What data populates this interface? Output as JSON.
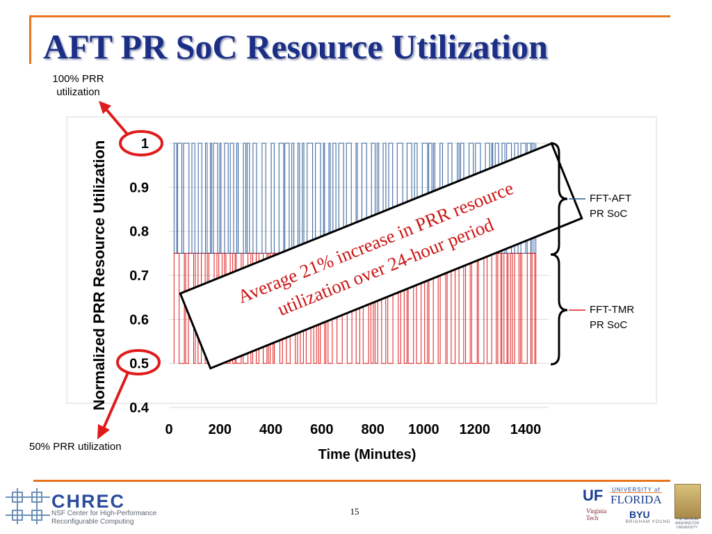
{
  "slide": {
    "title": "AFT PR SoC Resource Utilization",
    "page_number": "15"
  },
  "annotations": {
    "top_note_line1": "100% PRR",
    "top_note_line2": "utilization",
    "bottom_note": "50% PRR utilization",
    "callout_line1": "Average 21% increase in PRR resource",
    "callout_line2": "utilization over 24-hour period",
    "brace_label_aft_line1": "FFT-AFT",
    "brace_label_aft_line2": "PR SoC",
    "brace_label_tmr_line1": "FFT-TMR",
    "brace_label_tmr_line2": "PR SoC"
  },
  "colors": {
    "title": "#1c2f86",
    "accent_rule": "#e8741e",
    "aft_series": "#2e5c99",
    "tmr_series": "#e01b1b",
    "callout_text": "#cc1414",
    "highlight": "#e01b1b"
  },
  "chart_data": {
    "type": "line",
    "title": "",
    "xlabel": "Time (Minutes)",
    "ylabel": "Normalized PRR Resource Utilization",
    "xlim": [
      0,
      1440
    ],
    "ylim": [
      0.4,
      1.0
    ],
    "x_ticks": [
      "0",
      "200",
      "400",
      "600",
      "800",
      "1000",
      "1200",
      "1400"
    ],
    "y_ticks": [
      "0.4",
      "0.5",
      "0.6",
      "0.7",
      "0.8",
      "0.9",
      "1"
    ],
    "x_tick_values": [
      0,
      200,
      400,
      600,
      800,
      1000,
      1200,
      1400
    ],
    "y_tick_values": [
      0.4,
      0.5,
      0.6,
      0.7,
      0.8,
      0.9,
      1.0
    ],
    "gridlines": "horizontal",
    "series": [
      {
        "name": "FFT-AFT PR SoC",
        "step": true,
        "x": [
          20,
          1440
        ],
        "low": 0.75,
        "high": 1.0,
        "approx_switch_period_minutes": 10
      },
      {
        "name": "FFT-TMR PR SoC",
        "step": true,
        "x": [
          20,
          1440
        ],
        "low": 0.5,
        "high": 0.75,
        "approx_switch_period_minutes": 10
      }
    ],
    "highlighted_ticks": [
      "1",
      "0.5"
    ]
  },
  "logos": {
    "chrec_name": "CHREC",
    "chrec_sub1": "NSF Center for High-Performance",
    "chrec_sub2": "Reconfigurable Computing",
    "uf_mark": "UF",
    "uf_univ": "UNIVERSITY of",
    "uf_name": "FLORIDA",
    "vt_name": "Virginia Tech",
    "byu_name": "BYU",
    "byu_sub": "BRIGHAM YOUNG",
    "gw_name": "THE GEORGE WASHINGTON UNIVERSITY"
  }
}
